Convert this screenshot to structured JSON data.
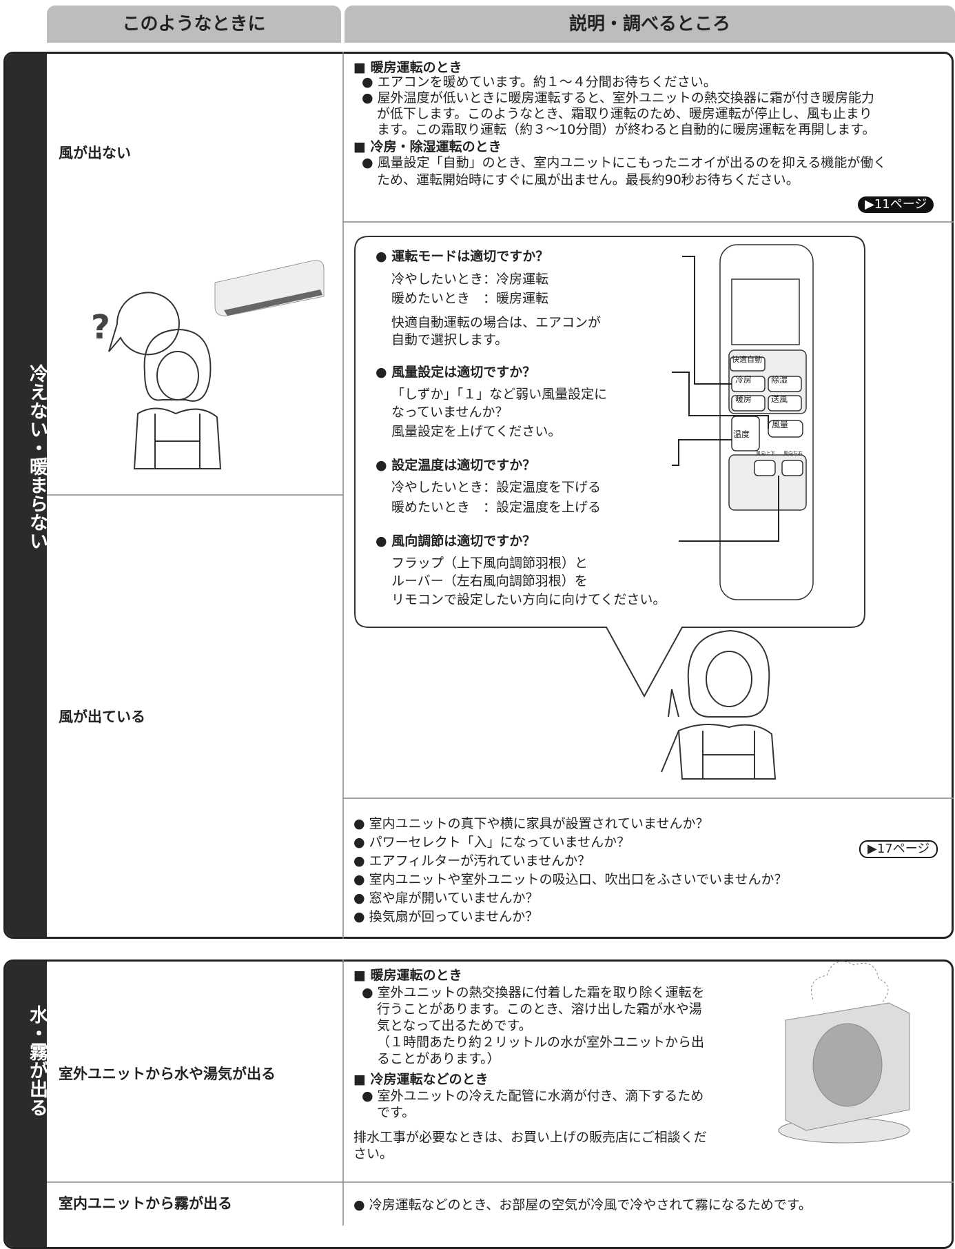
{
  "header": {
    "condition": "このようなときに",
    "explanation": "説明・調べるところ"
  },
  "section1": {
    "label": "冷えない・暖まらない",
    "no_wind": {
      "symptom": "風が出ない",
      "illustration_mark": "?",
      "heating_heading": "■ 暖房運転のとき",
      "heating_lines": [
        "● エアコンを暖めています。約１～４分間お待ちください。",
        "● 屋外温度が低いときに暖房運転すると、室外ユニットの熱交換器に霜が付き暖房能力",
        "が低下します。このようなとき、霜取り運転のため、暖房運転が停止し、風も止まり",
        "ます。この霜取り運転（約３～10分間）が終わると自動的に暖房運転を再開します。"
      ],
      "cooling_heading": "■ 冷房・除湿運転のとき",
      "cooling_lines": [
        "● 風量設定「自動」のとき、室内ユニットにこもったニオイが出るのを抑える機能が働く",
        "ため、運転開始時にすぐに風が出ません。最長約90秒お待ちください。"
      ],
      "page_ref": "▶11ページ"
    },
    "wind": {
      "symptom": "風が出ている",
      "checks": [
        {
          "question": "● 運転モードは適切ですか？",
          "lines": [
            "冷やしたいとき：冷房運転",
            "暖めたいとき　：暖房運転",
            "快適自動運転の場合は、エアコンが",
            "自動で選択します。"
          ]
        },
        {
          "question": "● 風量設定は適切ですか？",
          "lines": [
            "「しずか」「１」など弱い風量設定に",
            "なっていませんか？",
            "風量設定を上げてください。"
          ]
        },
        {
          "question": "● 設定温度は適切ですか？",
          "lines": [
            "冷やしたいとき：設定温度を下げる",
            "暖めたいとき　：設定温度を上げる"
          ]
        },
        {
          "question": "● 風向調節は適切ですか？",
          "lines": [
            "フラップ（上下風向調節羽根）と",
            "ルーバー（左右風向調節羽根）を",
            "リモコンで設定したい方向に向けてください。"
          ]
        }
      ],
      "remote": {
        "buttons": [
          "快適自動",
          "冷房",
          "除湿",
          "暖房",
          "送風",
          "温度",
          "風量",
          "風向上下",
          "風向左右"
        ]
      },
      "bullets": [
        "● 室内ユニットの真下や横に家具が設置されていませんか？",
        "● パワーセレクト「入」になっていませんか？",
        "● エアフィルターが汚れていませんか？",
        "● 室内ユニットや室外ユニットの吸込口、吹出口をふさいでいませんか？",
        "● 窓や扉が開いていませんか？",
        "● 換気扇が回っていませんか？"
      ],
      "page_ref": "▶17ページ"
    }
  },
  "section2": {
    "label": "水・霧が出る",
    "outdoor": {
      "symptom": "室外ユニットから水や湯気が出る",
      "lines": [
        "■ 暖房運転のとき",
        "● 室外ユニットの熱交換器に付着した霜を取り除く運転を",
        "行うことがあります。このとき、溶け出した霜が水や湯",
        "気となって出るためです。",
        "（１時間あたり約２リットルの水が室外ユニットから出",
        "ることがあります。）",
        "■ 冷房運転などのとき",
        "● 室外ユニットの冷えた配管に水滴が付き、滴下するため",
        "です。",
        "排水工事が必要なときは、お買い上げの販売店にご相談くだ",
        "さい。"
      ]
    },
    "indoor": {
      "symptom": "室内ユニットから霧が出る",
      "text": "● 冷房運転などのとき、お部屋の空気が冷風で冷やされて霧になるためです。"
    }
  }
}
